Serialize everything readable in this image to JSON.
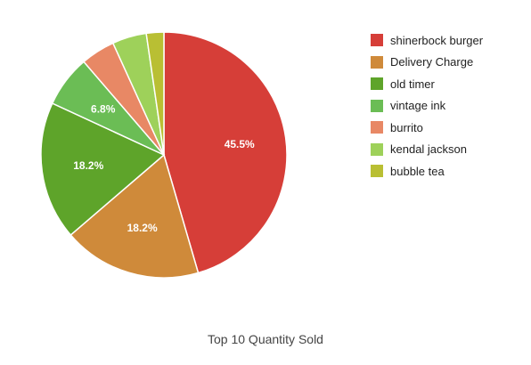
{
  "chart_data": {
    "type": "pie",
    "title": "Top 10 Quantity Sold",
    "legend_position": "right",
    "slices": [
      {
        "label": "shinerbock burger",
        "value": 45.5,
        "color": "#d63e38",
        "data_label": "45.5%"
      },
      {
        "label": "Delivery Charge",
        "value": 18.2,
        "color": "#cf8a3a",
        "data_label": "18.2%"
      },
      {
        "label": "old timer",
        "value": 18.2,
        "color": "#5ea42a",
        "data_label": "18.2%"
      },
      {
        "label": "vintage ink",
        "value": 6.8,
        "color": "#6bbd55",
        "data_label": "6.8%"
      },
      {
        "label": "burrito",
        "value": 4.5,
        "color": "#e88865",
        "data_label": ""
      },
      {
        "label": "kendal jackson",
        "value": 4.5,
        "color": "#9ed15a",
        "data_label": ""
      },
      {
        "label": "bubble tea",
        "value": 2.3,
        "color": "#b9bf33",
        "data_label": ""
      }
    ]
  }
}
